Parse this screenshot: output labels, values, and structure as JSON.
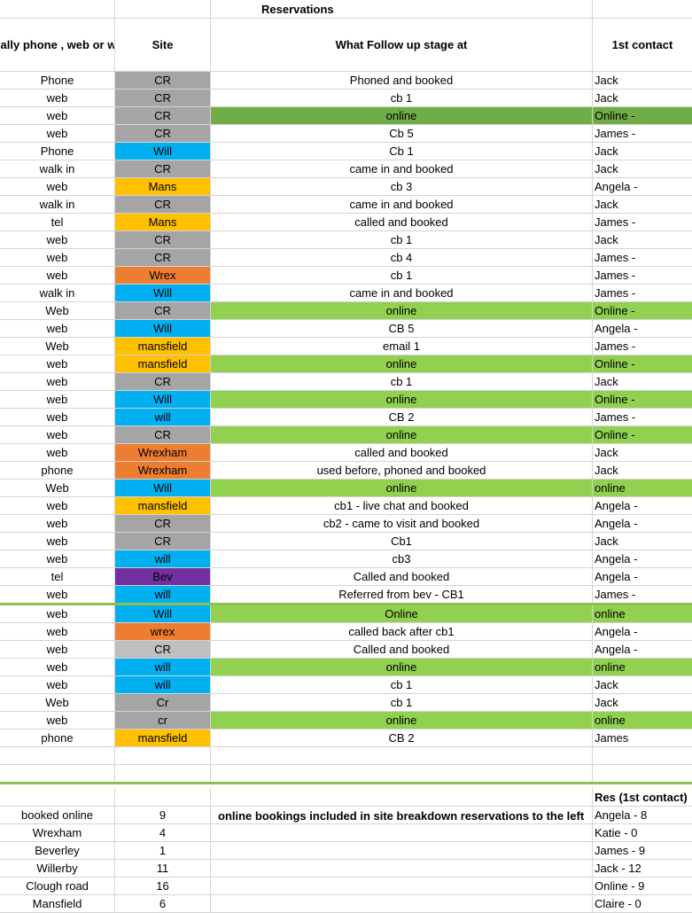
{
  "title": "Reservations",
  "headers": {
    "origin": "originally phone , web or walk in",
    "site": "Site",
    "stage": "What Follow up stage at",
    "contact": "1st contact"
  },
  "colors": {
    "gray": "#a5a5a5",
    "lightgray": "#bfbfbf",
    "blue": "#00b0f0",
    "orange": "#ffc000",
    "darkorange": "#ed7d31",
    "purple": "#7030a0",
    "green": "#92d050",
    "darkgreen": "#70ad47",
    "divider": "#8fbe4f"
  },
  "rows": [
    {
      "origin": "Phone",
      "site": "CR",
      "site_color": "gray",
      "stage": "Phoned and booked",
      "stage_color": "",
      "contact": "Jack",
      "contact_color": ""
    },
    {
      "origin": "web",
      "site": "CR",
      "site_color": "gray",
      "stage": "cb 1",
      "stage_color": "",
      "contact": "Jack",
      "contact_color": ""
    },
    {
      "origin": "web",
      "site": "CR",
      "site_color": "gray",
      "stage": "online",
      "stage_color": "darkgreen",
      "contact": "Online -",
      "contact_color": "darkgreen"
    },
    {
      "origin": "web",
      "site": "CR",
      "site_color": "gray",
      "stage": "Cb 5",
      "stage_color": "",
      "contact": "James -",
      "contact_color": ""
    },
    {
      "origin": "Phone",
      "site": "Will",
      "site_color": "blue",
      "stage": "Cb 1",
      "stage_color": "",
      "contact": "Jack",
      "contact_color": ""
    },
    {
      "origin": "walk in",
      "site": "CR",
      "site_color": "gray",
      "stage": "came in and booked",
      "stage_color": "",
      "contact": "Jack",
      "contact_color": ""
    },
    {
      "origin": "web",
      "site": "Mans",
      "site_color": "orange",
      "stage": "cb 3",
      "stage_color": "",
      "contact": "Angela -",
      "contact_color": ""
    },
    {
      "origin": "walk in",
      "site": "CR",
      "site_color": "gray",
      "stage": "came in and booked",
      "stage_color": "",
      "contact": "Jack",
      "contact_color": ""
    },
    {
      "origin": "tel",
      "site": "Mans",
      "site_color": "orange",
      "stage": "called and booked",
      "stage_color": "",
      "contact": "James -",
      "contact_color": ""
    },
    {
      "origin": "web",
      "site": "CR",
      "site_color": "gray",
      "stage": "cb 1",
      "stage_color": "",
      "contact": "Jack",
      "contact_color": ""
    },
    {
      "origin": "web",
      "site": "CR",
      "site_color": "gray",
      "stage": "cb 4",
      "stage_color": "",
      "contact": "James -",
      "contact_color": ""
    },
    {
      "origin": "web",
      "site": "Wrex",
      "site_color": "darkorange",
      "stage": "cb 1",
      "stage_color": "",
      "contact": "James -",
      "contact_color": ""
    },
    {
      "origin": "walk in",
      "site": "Will",
      "site_color": "blue",
      "stage": "came in and booked",
      "stage_color": "",
      "contact": "James -",
      "contact_color": ""
    },
    {
      "origin": "Web",
      "site": "CR",
      "site_color": "gray",
      "stage": "online",
      "stage_color": "green",
      "contact": "Online -",
      "contact_color": "green"
    },
    {
      "origin": "web",
      "site": "Will",
      "site_color": "blue",
      "stage": "CB 5",
      "stage_color": "",
      "contact": "Angela -",
      "contact_color": ""
    },
    {
      "origin": "Web",
      "site": "mansfield",
      "site_color": "orange",
      "stage": "email 1",
      "stage_color": "",
      "contact": "James -",
      "contact_color": ""
    },
    {
      "origin": "web",
      "site": "mansfield",
      "site_color": "orange",
      "stage": "online",
      "stage_color": "green",
      "contact": "Online -",
      "contact_color": "green"
    },
    {
      "origin": "web",
      "site": "CR",
      "site_color": "gray",
      "stage": "cb 1",
      "stage_color": "",
      "contact": "Jack",
      "contact_color": ""
    },
    {
      "origin": "web",
      "site": "Will",
      "site_color": "blue",
      "stage": "online",
      "stage_color": "green",
      "contact": "Online -",
      "contact_color": "green"
    },
    {
      "origin": "web",
      "site": "will",
      "site_color": "blue",
      "stage": "CB 2",
      "stage_color": "",
      "contact": "James -",
      "contact_color": ""
    },
    {
      "origin": "web",
      "site": "CR",
      "site_color": "gray",
      "stage": "online",
      "stage_color": "green",
      "contact": "Online -",
      "contact_color": "green"
    },
    {
      "origin": "web",
      "site": "Wrexham",
      "site_color": "darkorange",
      "stage": "called and booked",
      "stage_color": "",
      "contact": "Jack",
      "contact_color": ""
    },
    {
      "origin": "phone",
      "site": "Wrexham",
      "site_color": "darkorange",
      "stage": "used before, phoned and booked",
      "stage_color": "",
      "contact": "Jack",
      "contact_color": ""
    },
    {
      "origin": "Web",
      "site": "Will",
      "site_color": "blue",
      "stage": "online",
      "stage_color": "green",
      "contact": "online",
      "contact_color": "green"
    },
    {
      "origin": "web",
      "site": "mansfield",
      "site_color": "orange",
      "stage": "cb1 - live chat and booked",
      "stage_color": "",
      "contact": "Angela -",
      "contact_color": ""
    },
    {
      "origin": "web",
      "site": "CR",
      "site_color": "gray",
      "stage": "cb2 - came to visit and booked",
      "stage_color": "",
      "contact": "Angela -",
      "contact_color": ""
    },
    {
      "origin": "web",
      "site": "CR",
      "site_color": "gray",
      "stage": "Cb1",
      "stage_color": "",
      "contact": "Jack",
      "contact_color": ""
    },
    {
      "origin": "web",
      "site": "will",
      "site_color": "blue",
      "stage": "cb3",
      "stage_color": "",
      "contact": "Angela -",
      "contact_color": ""
    },
    {
      "origin": "tel",
      "site": "Bev",
      "site_color": "purple",
      "stage": "Called and booked",
      "stage_color": "",
      "contact": "Angela -",
      "contact_color": ""
    },
    {
      "origin": "web",
      "site": "will",
      "site_color": "blue",
      "stage": "Referred from bev - CB1",
      "stage_color": "",
      "contact": "James -",
      "contact_color": "",
      "divider": true
    },
    {
      "origin": "web",
      "site": "Will",
      "site_color": "blue",
      "stage": "Online",
      "stage_color": "green",
      "contact": "online",
      "contact_color": "green"
    },
    {
      "origin": "web",
      "site": "wrex",
      "site_color": "darkorange",
      "stage": "called back after cb1",
      "stage_color": "",
      "contact": "Angela -",
      "contact_color": ""
    },
    {
      "origin": "web",
      "site": "CR",
      "site_color": "lightgray",
      "stage": "Called and booked",
      "stage_color": "",
      "contact": "Angela -",
      "contact_color": ""
    },
    {
      "origin": "web",
      "site": "will",
      "site_color": "blue",
      "stage": "online",
      "stage_color": "green",
      "contact": "online",
      "contact_color": "green"
    },
    {
      "origin": "web",
      "site": "will",
      "site_color": "blue",
      "stage": "cb 1",
      "stage_color": "",
      "contact": "Jack",
      "contact_color": ""
    },
    {
      "origin": "Web",
      "site": "Cr",
      "site_color": "gray",
      "stage": "cb 1",
      "stage_color": "",
      "contact": "Jack",
      "contact_color": ""
    },
    {
      "origin": "web",
      "site": "cr",
      "site_color": "gray",
      "stage": "online",
      "stage_color": "green",
      "contact": "online",
      "contact_color": "green"
    },
    {
      "origin": "phone",
      "site": "mansfield",
      "site_color": "orange",
      "stage": "CB 2",
      "stage_color": "",
      "contact": "James",
      "contact_color": ""
    },
    {
      "origin": "",
      "site": "",
      "site_color": "",
      "stage": "",
      "stage_color": "",
      "contact": "",
      "contact_color": ""
    },
    {
      "origin": "",
      "site": "",
      "site_color": "",
      "stage": "",
      "stage_color": "",
      "contact": "",
      "contact_color": "",
      "divider": true
    }
  ],
  "summary": {
    "contact_header": "Res (1st contact)",
    "note": "online bookings included in site breakdown reservations to the left",
    "rows": [
      {
        "label": "booked online",
        "count": "9",
        "contact": "Angela - 8"
      },
      {
        "label": "Wrexham",
        "count": "4",
        "contact": "Katie - 0"
      },
      {
        "label": "Beverley",
        "count": "1",
        "contact": "James - 9"
      },
      {
        "label": "Willerby",
        "count": "11",
        "contact": "Jack - 12"
      },
      {
        "label": "Clough road",
        "count": "16",
        "contact": "Online - 9"
      },
      {
        "label": "Mansfield",
        "count": "6",
        "contact": "Claire - 0"
      }
    ]
  }
}
